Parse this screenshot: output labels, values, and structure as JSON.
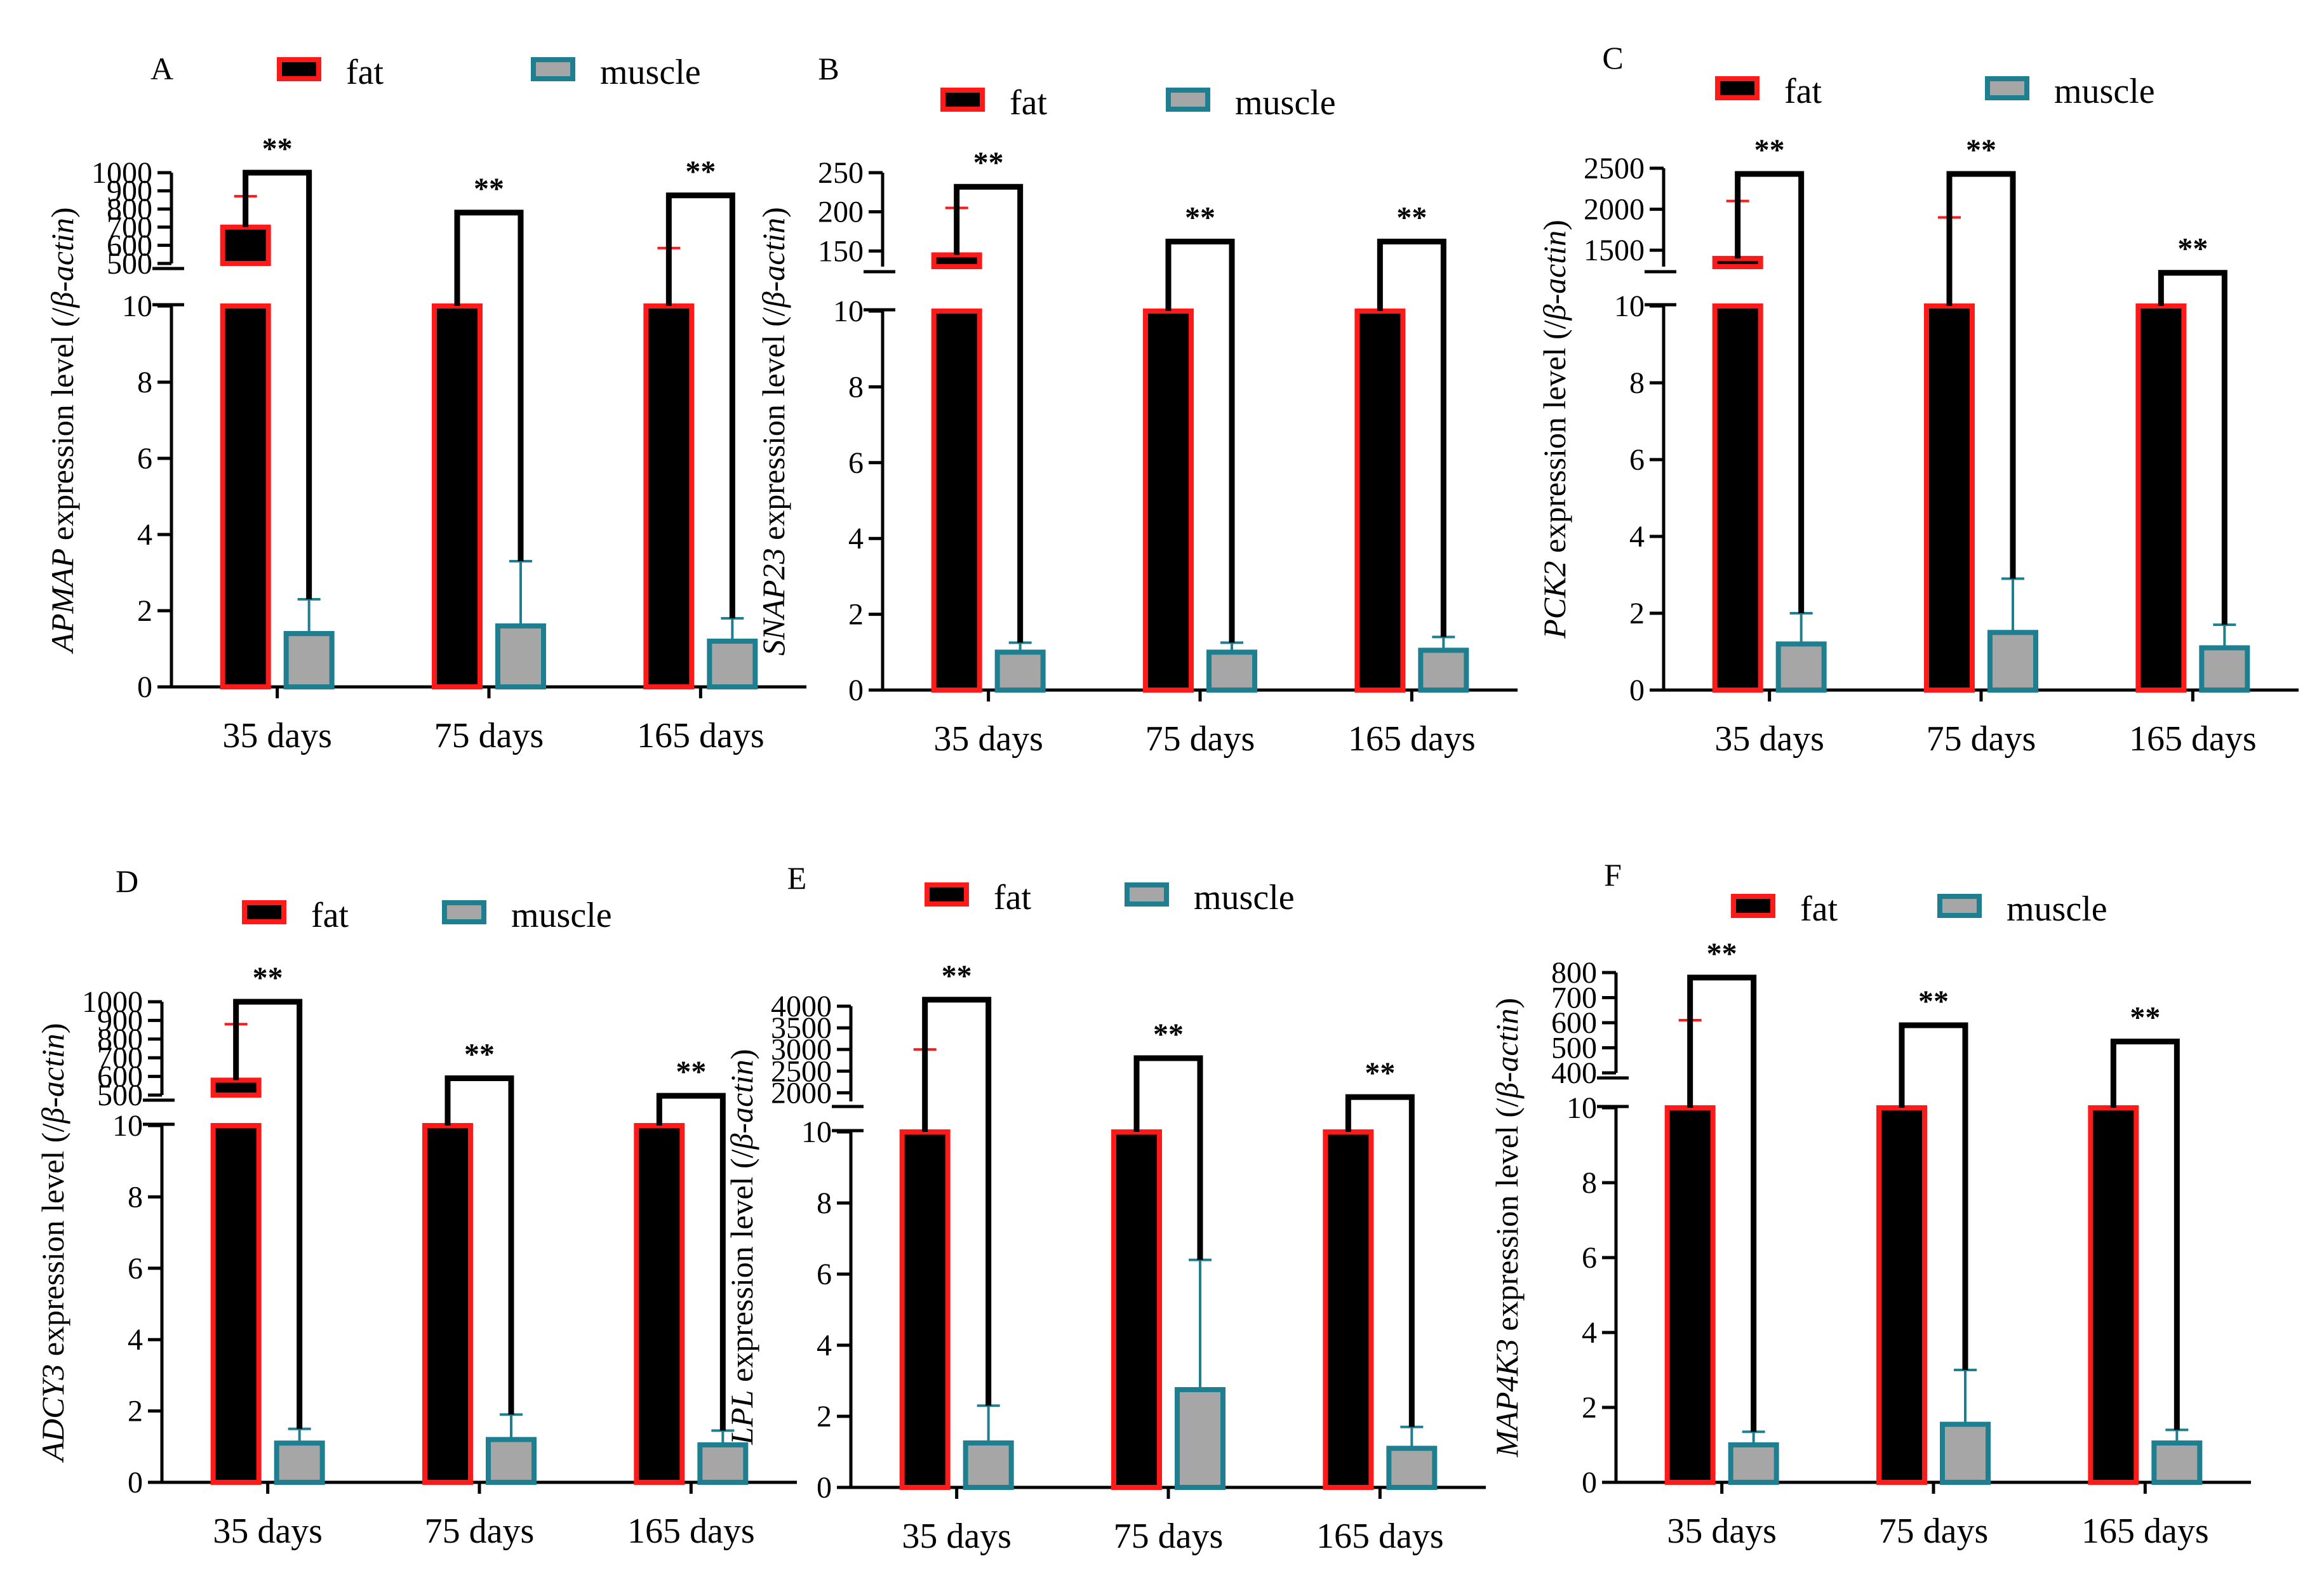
{
  "colors": {
    "fat_fill": "#000000",
    "fat_edge": "#ff1a1a",
    "muscle_fill": "#a6a6a6",
    "muscle_edge": "#1e7f90",
    "axis": "#000000",
    "bracket": "#000000"
  },
  "legend": {
    "fat": "fat",
    "muscle": "muscle"
  },
  "chart_data": [
    {
      "panel": "A",
      "type": "bar",
      "gene": "APMAP",
      "ylabel_suffix": " expression level (/",
      "ylabel_beta": "β-actin",
      "ylabel_close": ")",
      "categories": [
        "35 days",
        "75 days",
        "165 days"
      ],
      "break_after": 10,
      "lower_range": [
        0,
        10
      ],
      "lower_ticks": [
        0,
        2,
        4,
        6,
        8,
        10
      ],
      "upper_range": [
        500,
        1000
      ],
      "upper_ticks": [
        1000,
        900,
        800,
        700,
        600,
        500
      ],
      "series": [
        {
          "name": "fat",
          "values": [
            700,
            10,
            10
          ],
          "error": [
            870,
            null,
            585
          ]
        },
        {
          "name": "muscle",
          "values": [
            1.4,
            1.6,
            1.2
          ],
          "error": [
            2.3,
            3.3,
            1.8
          ]
        }
      ],
      "significance": [
        "**",
        "**",
        "**"
      ],
      "bracket_top": [
        1000,
        780,
        875
      ]
    },
    {
      "panel": "B",
      "type": "bar",
      "gene": "SNAP23",
      "ylabel_suffix": " expression level (/",
      "ylabel_beta": "β-actin",
      "ylabel_close": ")",
      "categories": [
        "35 days",
        "75 days",
        "165 days"
      ],
      "break_after": 10,
      "lower_range": [
        0,
        10
      ],
      "lower_ticks": [
        0,
        2,
        4,
        6,
        8,
        10
      ],
      "upper_range": [
        130,
        250
      ],
      "upper_ticks": [
        250,
        200,
        150
      ],
      "series": [
        {
          "name": "fat",
          "values": [
            145,
            10,
            10
          ],
          "error": [
            205,
            null,
            null
          ]
        },
        {
          "name": "muscle",
          "values": [
            1.0,
            1.0,
            1.05
          ],
          "error": [
            1.25,
            1.25,
            1.4
          ]
        }
      ],
      "significance": [
        "**",
        "**",
        "**"
      ],
      "bracket_top": [
        232,
        162,
        162
      ]
    },
    {
      "panel": "C",
      "type": "bar",
      "gene": "PCK2",
      "ylabel_suffix": " expression level (/",
      "ylabel_beta": "β-actin",
      "ylabel_close": ")",
      "categories": [
        "35 days",
        "75 days",
        "165 days"
      ],
      "break_after": 10,
      "lower_range": [
        0,
        10
      ],
      "lower_ticks": [
        0,
        2,
        4,
        6,
        8,
        10
      ],
      "upper_range": [
        1300,
        2500
      ],
      "upper_ticks": [
        2500,
        2000,
        1500
      ],
      "series": [
        {
          "name": "fat",
          "values": [
            1400,
            10,
            10
          ],
          "error": [
            2100,
            1900,
            null
          ]
        },
        {
          "name": "muscle",
          "values": [
            1.2,
            1.5,
            1.1
          ],
          "error": [
            2.0,
            2.9,
            1.7
          ]
        }
      ],
      "significance": [
        "**",
        "**",
        "**"
      ],
      "bracket_top": [
        2430,
        2430,
        1225
      ]
    },
    {
      "panel": "D",
      "type": "bar",
      "gene": "ADCY3",
      "ylabel_suffix": " expression level (/",
      "ylabel_beta": "β-actin",
      "ylabel_close": ")",
      "categories": [
        "35 days",
        "75 days",
        "165 days"
      ],
      "break_after": 10,
      "lower_range": [
        0,
        10
      ],
      "lower_ticks": [
        0,
        2,
        4,
        6,
        8,
        10
      ],
      "upper_range": [
        500,
        1000
      ],
      "upper_ticks": [
        1000,
        900,
        800,
        700,
        600,
        500
      ],
      "series": [
        {
          "name": "fat",
          "values": [
            580,
            10,
            10
          ],
          "error": [
            880,
            null,
            null
          ]
        },
        {
          "name": "muscle",
          "values": [
            1.1,
            1.2,
            1.05
          ],
          "error": [
            1.5,
            1.9,
            1.45
          ]
        }
      ],
      "significance": [
        "**",
        "**",
        "**"
      ],
      "bracket_top": [
        1000,
        590,
        496
      ]
    },
    {
      "panel": "E",
      "type": "bar",
      "gene": "LPL",
      "ylabel_suffix": " expression level (/",
      "ylabel_beta": "β-actin",
      "ylabel_close": ")",
      "categories": [
        "35 days",
        "75 days",
        "165 days"
      ],
      "break_after": 10,
      "lower_range": [
        0,
        10
      ],
      "lower_ticks": [
        0,
        2,
        4,
        6,
        8,
        10
      ],
      "upper_range": [
        1800,
        4000
      ],
      "upper_ticks": [
        4000,
        3500,
        3000,
        2500,
        2000
      ],
      "series": [
        {
          "name": "fat",
          "values": [
            10,
            10,
            10
          ],
          "error": [
            3000,
            null,
            null
          ]
        },
        {
          "name": "muscle",
          "values": [
            1.25,
            2.75,
            1.1
          ],
          "error": [
            2.3,
            6.4,
            1.7
          ]
        }
      ],
      "significance": [
        "**",
        "**",
        "**"
      ],
      "bracket_top": [
        4150,
        2800,
        1900
      ]
    },
    {
      "panel": "F",
      "type": "bar",
      "gene": "MAP4K3",
      "ylabel_suffix": " expression level (/",
      "ylabel_beta": "β-actin",
      "ylabel_close": ")",
      "categories": [
        "35 days",
        "75 days",
        "165 days"
      ],
      "break_after": 10,
      "lower_range": [
        0,
        10
      ],
      "lower_ticks": [
        0,
        2,
        4,
        6,
        8,
        10
      ],
      "upper_range": [
        400,
        800
      ],
      "upper_ticks": [
        800,
        700,
        600,
        500,
        400
      ],
      "series": [
        {
          "name": "fat",
          "values": [
            10,
            10,
            10
          ],
          "error": [
            610,
            null,
            null
          ]
        },
        {
          "name": "muscle",
          "values": [
            1.0,
            1.55,
            1.05
          ],
          "error": [
            1.35,
            3.0,
            1.4
          ]
        }
      ],
      "significance": [
        "**",
        "**",
        "**"
      ],
      "bracket_top": [
        780,
        590,
        525
      ]
    }
  ]
}
